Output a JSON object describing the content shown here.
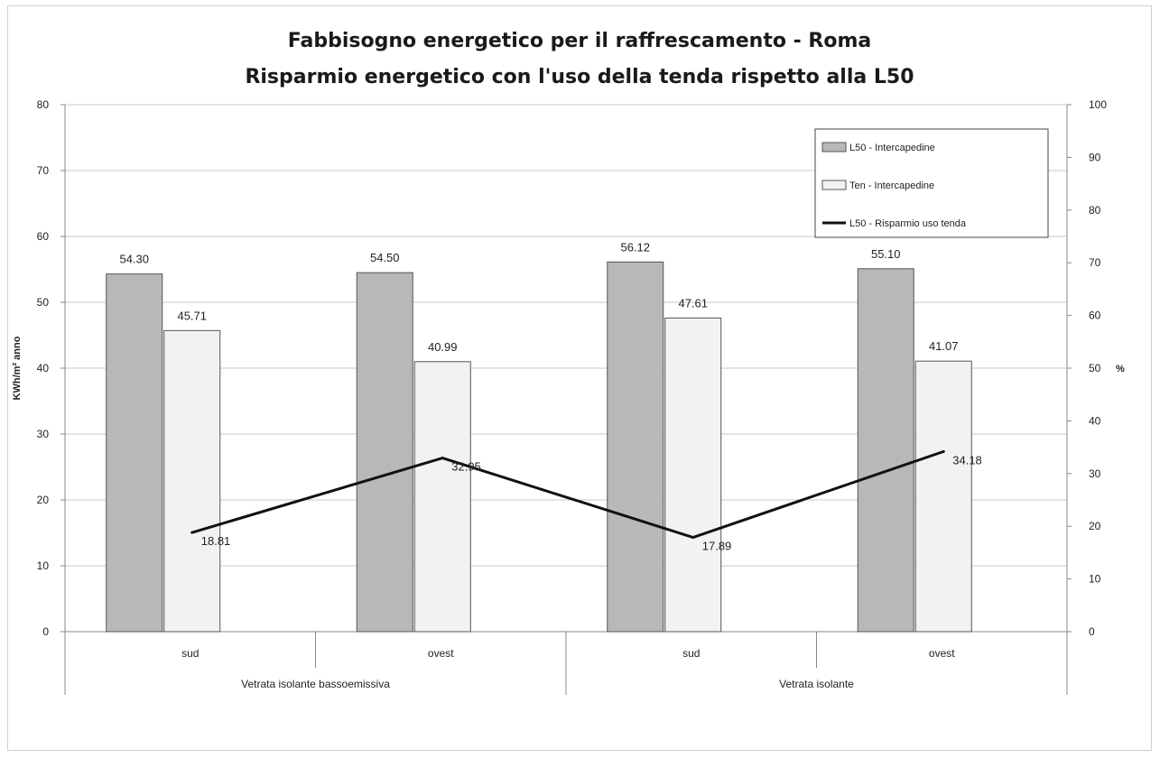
{
  "chart_data": {
    "type": "bar",
    "title": "Fabbisogno energetico per il raffrescamento - Roma",
    "subtitle": "Risparmio energetico con l'uso della tenda rispetto alla L50",
    "ylabel": "KWh/m² anno",
    "y2label": "%",
    "ylim": [
      0,
      80
    ],
    "y2lim": [
      0,
      100
    ],
    "yticks": [
      0,
      10,
      20,
      30,
      40,
      50,
      60,
      70,
      80
    ],
    "y2ticks": [
      0,
      10,
      20,
      30,
      40,
      50,
      60,
      70,
      80,
      90,
      100
    ],
    "categories": [
      "sud",
      "ovest",
      "sud",
      "ovest"
    ],
    "groups": [
      {
        "label": "Vetrata isolante bassoemissiva",
        "span": [
          0,
          1
        ]
      },
      {
        "label": "Vetrata isolante",
        "span": [
          2,
          3
        ]
      }
    ],
    "series": [
      {
        "name": "L50 - Intercapedine",
        "kind": "bar",
        "axis": "left",
        "color": "#b8b8b8",
        "values": [
          54.3,
          54.5,
          56.12,
          55.1
        ],
        "labels": [
          "54.30",
          "54.50",
          "56.12",
          "55.10"
        ]
      },
      {
        "name": "Ten - Intercapedine",
        "kind": "bar",
        "axis": "left",
        "color": "#f2f2f2",
        "values": [
          45.71,
          40.99,
          47.61,
          41.07
        ],
        "labels": [
          "45.71",
          "40.99",
          "47.61",
          "41.07"
        ]
      },
      {
        "name": "L50 - Risparmio uso tenda",
        "kind": "line",
        "axis": "right",
        "color": "#111111",
        "values": [
          18.81,
          32.95,
          17.89,
          34.18
        ],
        "labels": [
          "18.81",
          "32.95",
          "17.89",
          "34.18"
        ]
      }
    ],
    "grid": true,
    "legend_position": "top-right"
  }
}
